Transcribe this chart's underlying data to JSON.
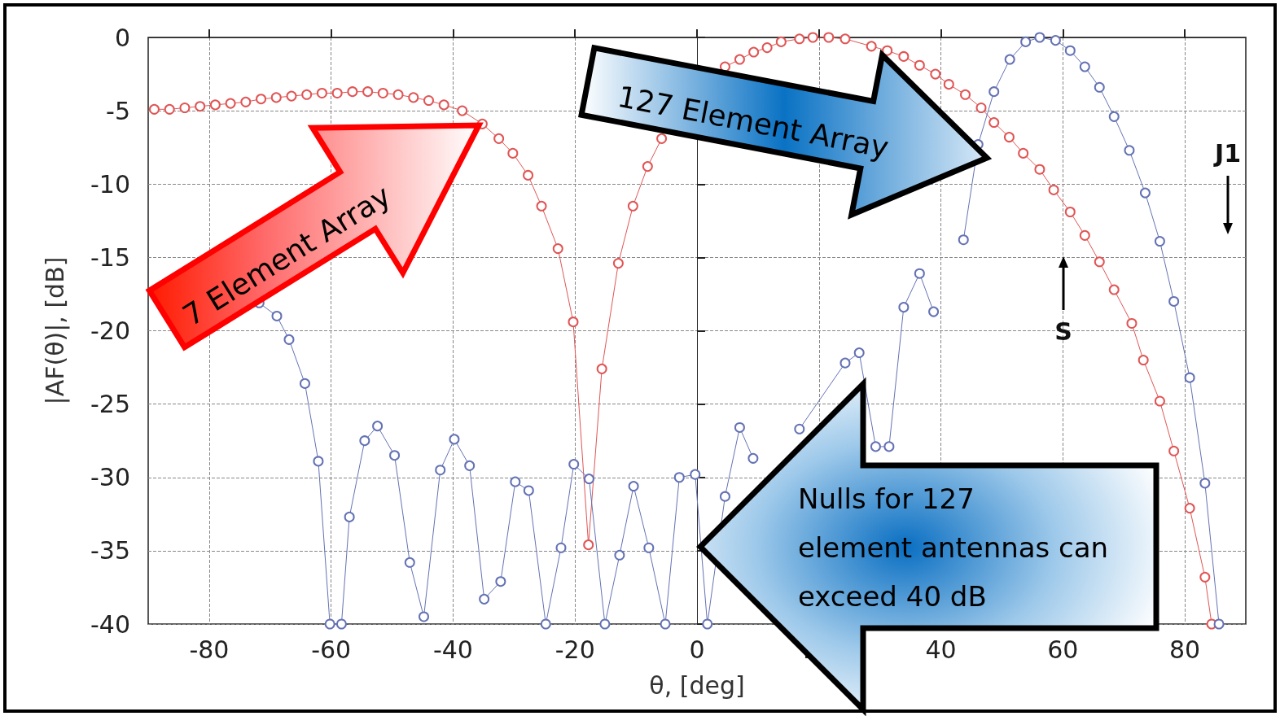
{
  "chart_data": {
    "type": "line",
    "xlabel": "θ, [deg]",
    "ylabel": "|AF(θ)|, [dB]",
    "xlim": [
      -90,
      90
    ],
    "xticks": [
      -80,
      -60,
      -40,
      -20,
      0,
      20,
      40,
      60,
      80
    ],
    "ylim": [
      -40,
      0
    ],
    "yticks": [
      -40,
      -35,
      -30,
      -25,
      -20,
      -15,
      -10,
      -5,
      0
    ],
    "grid": true,
    "marker": "circle",
    "line_style": "solid",
    "series": [
      {
        "color": "#e05555",
        "x": [
          -89,
          -86.5,
          -84,
          -81.5,
          -79,
          -76.5,
          -74,
          -71.5,
          -69,
          -66.5,
          -64,
          -61.5,
          -59,
          -56.5,
          -54,
          -51.5,
          -49,
          -46.5,
          -44,
          -41.5,
          -38.5,
          -35.2,
          -32.5,
          -30.2,
          -27.7,
          -25.5,
          -22.8,
          -20.3,
          -17.8,
          -15.6,
          -12.9,
          -10.5,
          -8.1,
          -5.8,
          -3.2,
          -0.5,
          2,
          4.6,
          7,
          9.3,
          11.5,
          13.8,
          16.8,
          19,
          21.6,
          24.3,
          28.6,
          31.2,
          33.9,
          36.5,
          39.1,
          41.3,
          44,
          46.6,
          48.7,
          51.2,
          53.5,
          56.2,
          58.5,
          61.2,
          63.6,
          66,
          68.4,
          71.3,
          73.2,
          75.9,
          78.2,
          80.8,
          83.3,
          84.4
        ],
        "values": [
          -4.9,
          -4.9,
          -4.8,
          -4.7,
          -4.6,
          -4.5,
          -4.4,
          -4.2,
          -4.1,
          -4.0,
          -3.9,
          -3.8,
          -3.8,
          -3.7,
          -3.7,
          -3.8,
          -3.9,
          -4.1,
          -4.3,
          -4.6,
          -5.0,
          -5.9,
          -6.9,
          -7.9,
          -9.4,
          -11.5,
          -14.4,
          -19.4,
          -34.6,
          -22.6,
          -15.4,
          -11.5,
          -8.8,
          -6.9,
          null,
          null,
          null,
          -2.0,
          -1.5,
          -1.0,
          -0.7,
          -0.3,
          -0.1,
          0,
          0,
          -0.1,
          -0.6,
          -0.9,
          -1.3,
          -1.9,
          -2.5,
          -3.2,
          -3.9,
          -4.8,
          -5.8,
          -6.8,
          -7.9,
          -9.0,
          -10.4,
          -11.9,
          -13.5,
          -15.3,
          -17.2,
          -19.5,
          -22.0,
          -24.8,
          -28.2,
          -32.1,
          -36.8,
          -40
        ]
      },
      {
        "color": "#6472b4",
        "x": [
          -71.8,
          -68.9,
          -66.9,
          -64.3,
          -62.1,
          -60.2,
          -58.3,
          -57,
          -54.5,
          -52.4,
          -49.6,
          -47.1,
          -44.8,
          -42.1,
          -39.8,
          -37.3,
          -34.9,
          -32.2,
          -29.8,
          -27.6,
          -24.8,
          -22.3,
          -20.2,
          -17.7,
          -15.1,
          -12.7,
          -10.4,
          -7.9,
          -5.2,
          -2.9,
          -0.3,
          1.7,
          4.6,
          7,
          9.2,
          11.5,
          16.8,
          24.3,
          26.6,
          29.3,
          31.5,
          33.9,
          36.5,
          38.8,
          41,
          43.7,
          46.1,
          48.7,
          51.3,
          53.9,
          56.2,
          58.8,
          61.2,
          63.6,
          66,
          68.4,
          70.9,
          73.5,
          75.9,
          78.2,
          80.8,
          83.3,
          85.6
        ],
        "values": [
          -18.1,
          -19.0,
          -20.6,
          -23.6,
          -28.9,
          -40,
          -40,
          -32.7,
          -27.5,
          -26.5,
          -28.5,
          -35.8,
          -39.5,
          -29.5,
          -27.4,
          -29.2,
          -38.3,
          -37.1,
          -30.3,
          -30.9,
          -40,
          -34.8,
          -29.1,
          -30.1,
          -40,
          -35.3,
          -30.6,
          -34.8,
          -40,
          -30.0,
          -29.8,
          -40,
          -31.3,
          -26.6,
          -28.7,
          null,
          -26.7,
          -22.2,
          -21.5,
          -27.9,
          -27.9,
          -18.4,
          -16.1,
          -18.7,
          null,
          -13.8,
          -7.3,
          -3.7,
          -1.5,
          -0.3,
          0,
          -0.2,
          -0.9,
          -2.0,
          -3.4,
          -5.4,
          -7.7,
          -10.6,
          -13.9,
          -18.0,
          -23.2,
          -30.4,
          -40
        ]
      }
    ],
    "annotations": [
      "7 Element Array",
      "127 Element Array",
      "Nulls for 127 element antennas can exceed 40 dB",
      "S",
      "J1"
    ]
  }
}
